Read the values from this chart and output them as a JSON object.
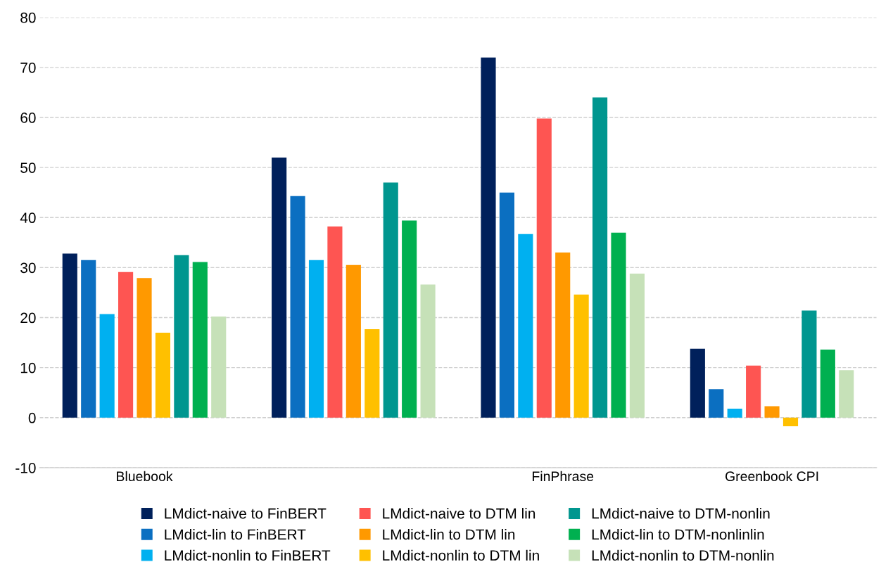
{
  "chart_data": {
    "type": "bar",
    "categories": [
      "Bluebook",
      null,
      "FinPhrase",
      "Greenbook CPI"
    ],
    "series": [
      {
        "name": "LMdict-naive to FinBERT",
        "color": "#00205b",
        "values": [
          32.8,
          52,
          72,
          13.8
        ]
      },
      {
        "name": "LMdict-lin to FinBERT",
        "color": "#0b6fc1",
        "values": [
          31.5,
          44.3,
          45,
          5.7
        ]
      },
      {
        "name": "LMdict-nonlin to FinBERT",
        "color": "#00b0f0",
        "values": [
          20.7,
          31.5,
          36.7,
          1.8
        ]
      },
      {
        "name": "LMdict-naive to DTM lin",
        "color": "#fe5552",
        "values": [
          29.1,
          38.2,
          59.8,
          10.4
        ]
      },
      {
        "name": "LMdict-lin to DTM lin",
        "color": "#ff9900",
        "values": [
          27.9,
          30.5,
          33,
          2.3
        ]
      },
      {
        "name": "LMdict-nonlin to DTM lin",
        "color": "#ffc000",
        "values": [
          17,
          17.7,
          24.6,
          -1.7
        ]
      },
      {
        "name": "LMdict-naive to DTM-nonlin",
        "color": "#00968f",
        "values": [
          32.5,
          47,
          64,
          21.4
        ]
      },
      {
        "name": "LMdict-lin to DTM-nonlinlin",
        "color": "#00b050",
        "values": [
          31.1,
          39.4,
          37,
          13.6
        ]
      },
      {
        "name": "LMdict-nonlin to DTM-nonlin",
        "color": "#c6e1b8",
        "values": [
          20.2,
          26.6,
          28.8,
          9.5
        ]
      }
    ],
    "ylim": [
      -10,
      80
    ],
    "yticks": [
      -10,
      0,
      10,
      20,
      30,
      40,
      50,
      60,
      70,
      80
    ],
    "grid": "y",
    "legend": "bottom"
  }
}
